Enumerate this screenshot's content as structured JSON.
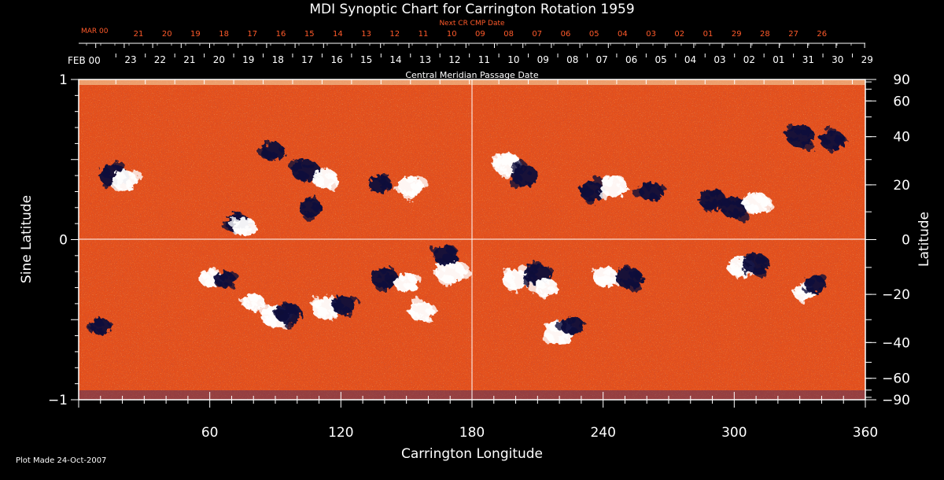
{
  "chart_data": {
    "type": "heatmap",
    "title": "MDI Synoptic Chart for Carrington Rotation 1959",
    "xlabel": "Carrington Longitude",
    "ylabel_left": "Sine Latitude",
    "ylabel_right": "Latitude",
    "xlim": [
      0,
      360
    ],
    "ylim": [
      -1,
      1
    ],
    "x_ticks": [
      60,
      120,
      180,
      240,
      300,
      360
    ],
    "y_ticks_left": [
      {
        "value": 1,
        "label": "1"
      },
      {
        "value": 0,
        "label": "0"
      },
      {
        "value": -1,
        "label": "−1"
      }
    ],
    "lat_ticks_right": [
      90,
      60,
      40,
      20,
      0,
      -20,
      -40,
      -60,
      -90
    ],
    "lat_labels_right": [
      "90",
      "60",
      "40",
      "20",
      "0",
      "−20",
      "−40",
      "−60",
      "−90"
    ],
    "cmp_axis_label": "Central Meridian Passage Date",
    "cmp_month_label": "FEB 00",
    "cmp_dates": [
      "23",
      "22",
      "21",
      "20",
      "19",
      "18",
      "17",
      "16",
      "15",
      "14",
      "13",
      "12",
      "11",
      "10",
      "09",
      "08",
      "07",
      "06",
      "05",
      "04",
      "03",
      "02",
      "01",
      "31",
      "30",
      "29"
    ],
    "next_cr_axis_label": "Next CR CMP Date",
    "next_cr_month_label": "MAR 00",
    "next_cr_dates": [
      "21",
      "20",
      "19",
      "18",
      "17",
      "16",
      "15",
      "14",
      "13",
      "12",
      "11",
      "10",
      "09",
      "08",
      "07",
      "06",
      "05",
      "04",
      "03",
      "02",
      "01",
      "29",
      "28",
      "27",
      "26"
    ],
    "background_color": "#e8501a",
    "positive_color": "#ffffff",
    "negative_color": "#0a0a3a",
    "regions": [
      {
        "lon": 16,
        "sinlat": 0.4,
        "polarity": "negative",
        "strength": 0.9
      },
      {
        "lon": 21,
        "sinlat": 0.37,
        "polarity": "positive",
        "strength": 0.7
      },
      {
        "lon": 73,
        "sinlat": 0.1,
        "polarity": "negative",
        "strength": 0.7
      },
      {
        "lon": 76,
        "sinlat": 0.08,
        "polarity": "positive",
        "strength": 0.6
      },
      {
        "lon": 89,
        "sinlat": 0.55,
        "polarity": "negative",
        "strength": 0.6
      },
      {
        "lon": 104,
        "sinlat": 0.43,
        "polarity": "negative",
        "strength": 0.9
      },
      {
        "lon": 113,
        "sinlat": 0.38,
        "polarity": "positive",
        "strength": 0.7
      },
      {
        "lon": 106,
        "sinlat": 0.2,
        "polarity": "negative",
        "strength": 0.6
      },
      {
        "lon": 138,
        "sinlat": 0.35,
        "polarity": "negative",
        "strength": 0.5
      },
      {
        "lon": 152,
        "sinlat": 0.33,
        "polarity": "positive",
        "strength": 0.7
      },
      {
        "lon": 60,
        "sinlat": -0.24,
        "polarity": "positive",
        "strength": 0.5
      },
      {
        "lon": 67,
        "sinlat": -0.25,
        "polarity": "negative",
        "strength": 0.4
      },
      {
        "lon": 80,
        "sinlat": -0.39,
        "polarity": "positive",
        "strength": 0.5
      },
      {
        "lon": 90,
        "sinlat": -0.48,
        "polarity": "positive",
        "strength": 0.9
      },
      {
        "lon": 96,
        "sinlat": -0.46,
        "polarity": "negative",
        "strength": 0.8
      },
      {
        "lon": 113,
        "sinlat": -0.43,
        "polarity": "positive",
        "strength": 0.9
      },
      {
        "lon": 121,
        "sinlat": -0.41,
        "polarity": "negative",
        "strength": 0.6
      },
      {
        "lon": 140,
        "sinlat": -0.24,
        "polarity": "negative",
        "strength": 0.8
      },
      {
        "lon": 150,
        "sinlat": -0.27,
        "polarity": "positive",
        "strength": 0.6
      },
      {
        "lon": 170,
        "sinlat": -0.2,
        "polarity": "positive",
        "strength": 1.0
      },
      {
        "lon": 168,
        "sinlat": -0.1,
        "polarity": "negative",
        "strength": 0.7
      },
      {
        "lon": 157,
        "sinlat": -0.45,
        "polarity": "positive",
        "strength": 0.7
      },
      {
        "lon": 196,
        "sinlat": 0.47,
        "polarity": "positive",
        "strength": 0.9
      },
      {
        "lon": 204,
        "sinlat": 0.4,
        "polarity": "negative",
        "strength": 0.8
      },
      {
        "lon": 235,
        "sinlat": 0.3,
        "polarity": "negative",
        "strength": 0.7
      },
      {
        "lon": 245,
        "sinlat": 0.33,
        "polarity": "positive",
        "strength": 0.8
      },
      {
        "lon": 262,
        "sinlat": 0.3,
        "polarity": "negative",
        "strength": 0.6
      },
      {
        "lon": 290,
        "sinlat": 0.25,
        "polarity": "negative",
        "strength": 0.8
      },
      {
        "lon": 300,
        "sinlat": 0.2,
        "polarity": "negative",
        "strength": 0.8
      },
      {
        "lon": 310,
        "sinlat": 0.23,
        "polarity": "positive",
        "strength": 0.8
      },
      {
        "lon": 330,
        "sinlat": 0.65,
        "polarity": "negative",
        "strength": 0.9
      },
      {
        "lon": 345,
        "sinlat": 0.62,
        "polarity": "negative",
        "strength": 0.7
      },
      {
        "lon": 200,
        "sinlat": -0.25,
        "polarity": "positive",
        "strength": 0.8
      },
      {
        "lon": 210,
        "sinlat": -0.22,
        "polarity": "negative",
        "strength": 0.8
      },
      {
        "lon": 214,
        "sinlat": -0.3,
        "polarity": "positive",
        "strength": 0.6
      },
      {
        "lon": 220,
        "sinlat": -0.58,
        "polarity": "positive",
        "strength": 1.0
      },
      {
        "lon": 226,
        "sinlat": -0.54,
        "polarity": "negative",
        "strength": 0.6
      },
      {
        "lon": 241,
        "sinlat": -0.23,
        "polarity": "positive",
        "strength": 0.7
      },
      {
        "lon": 252,
        "sinlat": -0.24,
        "polarity": "negative",
        "strength": 0.8
      },
      {
        "lon": 303,
        "sinlat": -0.17,
        "polarity": "positive",
        "strength": 0.8
      },
      {
        "lon": 310,
        "sinlat": -0.15,
        "polarity": "negative",
        "strength": 0.8
      },
      {
        "lon": 332,
        "sinlat": -0.33,
        "polarity": "positive",
        "strength": 0.5
      },
      {
        "lon": 337,
        "sinlat": -0.28,
        "polarity": "negative",
        "strength": 0.5
      },
      {
        "lon": 10,
        "sinlat": -0.54,
        "polarity": "negative",
        "strength": 0.4
      }
    ]
  },
  "footer": {
    "plot_made": "Plot Made 24-Oct-2007"
  }
}
